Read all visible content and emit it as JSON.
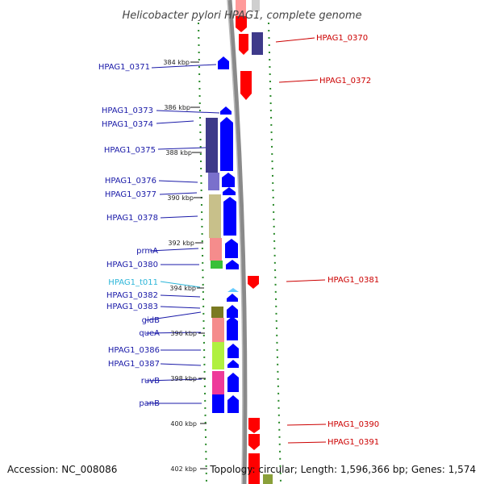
{
  "title": "Helicobacter pylori HPAG1, complete genome",
  "footer": {
    "accession": "Accession: NC_008086",
    "summary": "Topology: circular; Length: 1,596,366 bp; Genes: 1,574"
  },
  "scale_ticks": [
    "384 kbp",
    "386 kbp",
    "388 kbp",
    "390 kbp",
    "392 kbp",
    "394 kbp",
    "396 kbp",
    "398 kbp",
    "400 kbp",
    "402 kbp"
  ],
  "left_labels": [
    {
      "text": "HPAG1_0371",
      "color": "blue"
    },
    {
      "text": "HPAG1_0373",
      "color": "blue"
    },
    {
      "text": "HPAG1_0374",
      "color": "blue"
    },
    {
      "text": "HPAG1_0375",
      "color": "blue"
    },
    {
      "text": "HPAG1_0376",
      "color": "blue"
    },
    {
      "text": "HPAG1_0377",
      "color": "blue"
    },
    {
      "text": "HPAG1_0378",
      "color": "blue"
    },
    {
      "text": "prmA",
      "color": "blue"
    },
    {
      "text": "HPAG1_0380",
      "color": "blue"
    },
    {
      "text": "HPAG1_t011",
      "color": "cyan"
    },
    {
      "text": "HPAG1_0382",
      "color": "blue"
    },
    {
      "text": "HPAG1_0383",
      "color": "blue"
    },
    {
      "text": "gidB",
      "color": "blue"
    },
    {
      "text": "queA",
      "color": "blue"
    },
    {
      "text": "HPAG1_0386",
      "color": "blue"
    },
    {
      "text": "HPAG1_0387",
      "color": "blue"
    },
    {
      "text": "ruvB",
      "color": "blue"
    },
    {
      "text": "panB",
      "color": "blue"
    }
  ],
  "right_labels": [
    {
      "text": "HPAG1_0370"
    },
    {
      "text": "HPAG1_0372"
    },
    {
      "text": "HPAG1_0381"
    },
    {
      "text": "HPAG1_0390"
    },
    {
      "text": "HPAG1_0391"
    }
  ],
  "colors": {
    "forward_gene": "#0000ff",
    "reverse_gene": "#ff0000",
    "trna": "#66ccff",
    "backbone": "#888888",
    "scale_tick": "#228b22"
  }
}
